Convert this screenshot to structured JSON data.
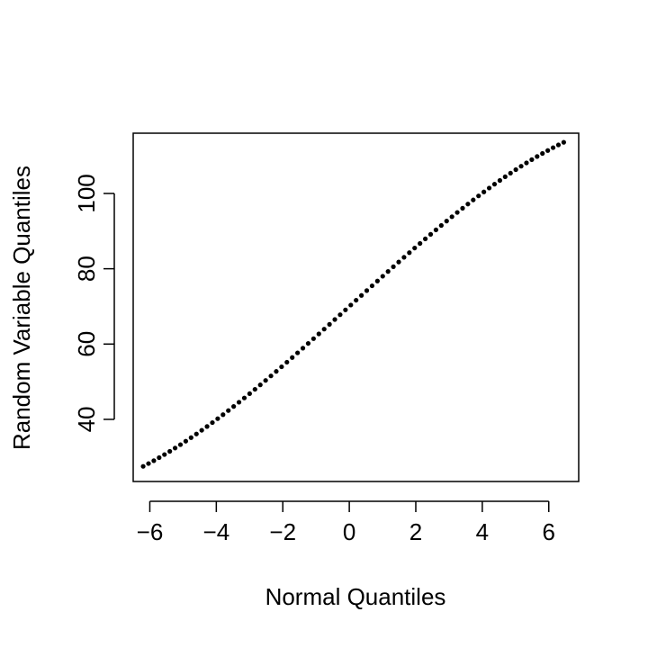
{
  "chart_data": {
    "type": "scatter",
    "title": "",
    "xlabel": "Normal Quantiles",
    "ylabel": "Random Variable Quantiles",
    "xlim": [
      -6.5,
      6.9
    ],
    "ylim": [
      23.5,
      116
    ],
    "xticks": [
      -6,
      -4,
      -2,
      0,
      2,
      4,
      6
    ],
    "xtick_labels": [
      "−6",
      "−4",
      "−2",
      "0",
      "2",
      "4",
      "6"
    ],
    "yticks": [
      40,
      60,
      80,
      100
    ],
    "ytick_labels": [
      "40",
      "60",
      "80",
      "100"
    ],
    "grid": false,
    "legend": "none",
    "point_color": "#000000",
    "x_range": [
      -6.2,
      6.45
    ],
    "y_range": [
      27.0,
      113.0
    ],
    "n_points": 80,
    "midpoint": [
      0.0,
      70.0
    ],
    "slope_at_center": 8.0
  }
}
